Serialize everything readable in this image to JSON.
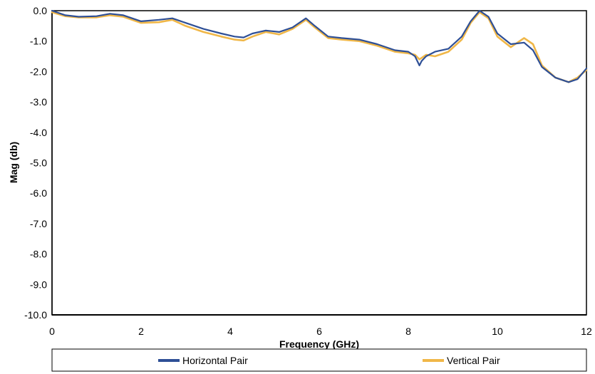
{
  "chart_data": {
    "type": "line",
    "xlabel": "Frequency (GHz)",
    "ylabel": "Mag (db)",
    "xlim": [
      0,
      12
    ],
    "ylim": [
      -10,
      0
    ],
    "x_ticks": [
      "0",
      "2",
      "4",
      "6",
      "8",
      "10",
      "12"
    ],
    "y_ticks": [
      "0.0",
      "-1.0",
      "-2.0",
      "-3.0",
      "-4.0",
      "-5.0",
      "-6.0",
      "-7.0",
      "-8.0",
      "-9.0",
      "-10.0"
    ],
    "legend_position": "bottom",
    "series": [
      {
        "name": "Horizontal Pair",
        "color": "#2e4f96",
        "x": [
          0,
          0.3,
          0.6,
          1.0,
          1.3,
          1.6,
          2.0,
          2.4,
          2.7,
          3.0,
          3.4,
          3.8,
          4.1,
          4.3,
          4.5,
          4.8,
          5.1,
          5.4,
          5.7,
          5.9,
          6.2,
          6.5,
          6.9,
          7.3,
          7.7,
          8.0,
          8.15,
          8.25,
          8.3,
          8.4,
          8.6,
          8.9,
          9.2,
          9.4,
          9.6,
          9.8,
          10.0,
          10.3,
          10.6,
          10.8,
          11.0,
          11.3,
          11.6,
          11.8,
          12.0
        ],
        "y": [
          0.0,
          -0.15,
          -0.2,
          -0.18,
          -0.1,
          -0.15,
          -0.35,
          -0.3,
          -0.25,
          -0.4,
          -0.6,
          -0.75,
          -0.85,
          -0.88,
          -0.75,
          -0.65,
          -0.7,
          -0.55,
          -0.25,
          -0.5,
          -0.85,
          -0.9,
          -0.95,
          -1.1,
          -1.3,
          -1.35,
          -1.5,
          -1.8,
          -1.65,
          -1.5,
          -1.35,
          -1.25,
          -0.85,
          -0.35,
          0.0,
          -0.2,
          -0.75,
          -1.1,
          -1.05,
          -1.3,
          -1.85,
          -2.2,
          -2.35,
          -2.25,
          -1.9
        ]
      },
      {
        "name": "Vertical Pair",
        "color": "#f0b748",
        "x": [
          0,
          0.3,
          0.6,
          1.0,
          1.3,
          1.6,
          2.0,
          2.4,
          2.7,
          3.0,
          3.4,
          3.8,
          4.1,
          4.3,
          4.5,
          4.8,
          5.1,
          5.4,
          5.7,
          5.9,
          6.2,
          6.5,
          6.9,
          7.3,
          7.7,
          8.0,
          8.15,
          8.25,
          8.3,
          8.4,
          8.6,
          8.9,
          9.2,
          9.4,
          9.6,
          9.8,
          10.0,
          10.3,
          10.6,
          10.8,
          11.0,
          11.3,
          11.6,
          11.8,
          12.0
        ],
        "y": [
          -0.05,
          -0.18,
          -0.22,
          -0.22,
          -0.15,
          -0.2,
          -0.4,
          -0.38,
          -0.3,
          -0.5,
          -0.7,
          -0.85,
          -0.95,
          -0.98,
          -0.85,
          -0.7,
          -0.78,
          -0.6,
          -0.3,
          -0.55,
          -0.9,
          -0.95,
          -1.0,
          -1.15,
          -1.35,
          -1.4,
          -1.45,
          -1.6,
          -1.55,
          -1.45,
          -1.5,
          -1.35,
          -0.95,
          -0.4,
          -0.05,
          -0.25,
          -0.85,
          -1.2,
          -0.9,
          -1.1,
          -1.8,
          -2.2,
          -2.35,
          -2.2,
          -1.95
        ]
      }
    ]
  }
}
